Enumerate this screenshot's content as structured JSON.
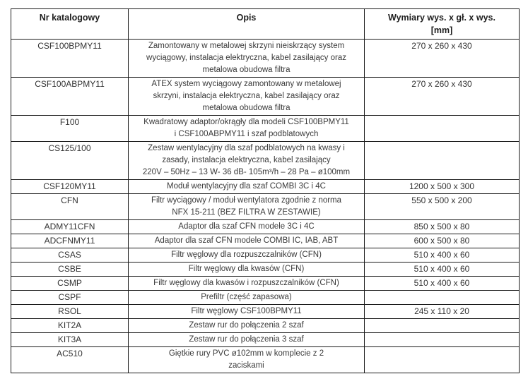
{
  "table": {
    "headers": {
      "catalog": "Nr katalogowy",
      "description": "Opis",
      "dimensions": "Wymiary wys. x gł. x wys.\n[mm]"
    },
    "rows": [
      {
        "code": "CSF100BPMY11",
        "desc": "Zamontowany w metalowej skrzyni nieiskrzący system\nwyciągowy, instalacja elektryczna, kabel zasilający oraz\nmetalowa obudowa filtra",
        "dims": "270 x 260 x 430"
      },
      {
        "code": "CSF100ABPMY11",
        "desc": "ATEX system wyciągowy zamontowany w metalowej\nskrzyni, instalacja elektryczna, kabel zasilający oraz\nmetalowa obudowa filtra",
        "dims": "270 x 260 x 430"
      },
      {
        "code": "F100",
        "desc": "Kwadratowy adaptor/okrągły dla modeli CSF100BPMY11\ni CSF100ABPMY11 i szaf podblatowych",
        "dims": ""
      },
      {
        "code": "CS125/100",
        "desc": "Zestaw wentylacyjny dla szaf podblatowych na kwasy i\nzasady, instalacja elektryczna, kabel zasilający\n220V – 50Hz – 13 W- 36 dB- 105m³/h – 28 Pa – ø100mm",
        "dims": ""
      },
      {
        "code": "CSF120MY11",
        "desc": "Moduł wentylacyjny dla szaf COMBI 3C i 4C",
        "dims": "1200 x 500 x 300"
      },
      {
        "code": "CFN",
        "desc": "Filtr wyciągowy / moduł wentylatora zgodnie z norma\nNFX 15-211 (BEZ FILTRA W ZESTAWIE)",
        "dims": "550 x 500 x 200"
      },
      {
        "code": "ADMY11CFN",
        "desc": "Adaptor dla szaf CFN modele 3C i 4C",
        "dims": "850 x 500 x 80"
      },
      {
        "code": "ADCFNMY11",
        "desc": "Adaptor dla szaf CFN modele COMBI IC, IAB, ABT",
        "dims": "600 x 500 x 80"
      },
      {
        "code": "CSAS",
        "desc": "Filtr węglowy dla rozpuszczalników (CFN)",
        "dims": "510 x 400 x 60"
      },
      {
        "code": "CSBE",
        "desc": "Filtr węglowy dla kwasów (CFN)",
        "dims": "510 x 400 x 60"
      },
      {
        "code": "CSMP",
        "desc": "Filtr węglowy dla kwasów i rozpuszczalników (CFN)",
        "dims": "510 x 400 x 60"
      },
      {
        "code": "CSPF",
        "desc": "Prefiltr (część zapasowa)",
        "dims": ""
      },
      {
        "code": "RSOL",
        "desc": "Filtr węglowy CSF100BPMY11",
        "dims": "245 x 110 x 20"
      },
      {
        "code": "KIT2A",
        "desc": "Zestaw rur do połączenia 2 szaf",
        "dims": ""
      },
      {
        "code": "KIT3A",
        "desc": "Zestaw rur do połączenia 3 szaf",
        "dims": ""
      },
      {
        "code": "AC510",
        "desc": "Giętkie rury PVC ø102mm w komplecie z 2\nzaciskami",
        "dims": ""
      }
    ]
  },
  "colors": {
    "border": "#1b1b1b",
    "header_text": "#1f1f1f",
    "body_text": "#3a3a3a",
    "background": "#ffffff"
  }
}
